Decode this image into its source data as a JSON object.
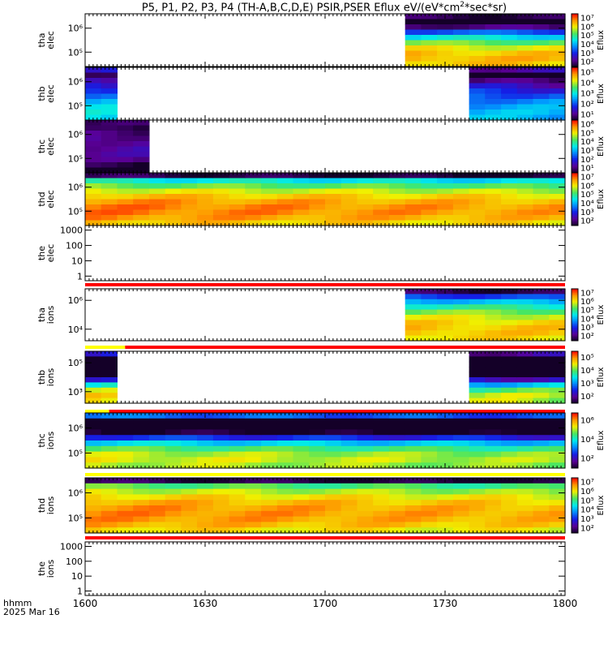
{
  "title": {
    "main": "P5, P1, P2, P3, P4 (TH-A,B,C,D,E) PSIR,PSER Eflux eV/(eV*cm",
    "sup": "2",
    "tail": "*sec*sr)"
  },
  "footer": {
    "line1": "hhmm",
    "line2": "2025 Mar 16"
  },
  "colors": {
    "frame": "#000000",
    "flag_red": "#ff0000",
    "flag_yellow": "#ffff00",
    "fill_black": "#000000"
  },
  "chart_data": {
    "type": "heatmap",
    "title": "P5, P1, P2, P3, P4 (TH-A,B,C,D,E) PSIR,PSER Eflux eV/(eV*cm2*sec*sr)",
    "xlabel": "",
    "x_ticks": [
      "1600",
      "1630",
      "1700",
      "1730",
      "1800"
    ],
    "x_tick_minutes": [
      0,
      30,
      60,
      90,
      120
    ],
    "xlim_minutes": [
      0,
      120
    ],
    "colorbar_title": "Eflux",
    "panels": [
      {
        "name": "tha-elec",
        "probe": "tha",
        "species": "elec",
        "label_lines": [
          "tha",
          "elec"
        ],
        "y_ticks": [
          "10⁵",
          "10⁶"
        ],
        "y_tick_exp": [
          5,
          6
        ],
        "ylim_exp": [
          4.4,
          6.6
        ],
        "cbar_ticks": [
          "10⁷",
          "10⁶",
          "10⁵",
          "10⁴",
          "10³",
          "10²"
        ],
        "cbar_tick_exp": [
          7,
          6,
          5,
          4,
          3,
          2
        ],
        "cbar_range_exp": [
          1.5,
          7.5
        ],
        "coverage_min": [
          [
            80,
            120
          ]
        ],
        "profile": {
          "peak_exp": 6.7,
          "peak_rows": 0.85,
          "width": 0.35,
          "top_exp": 2.0
        },
        "flag_bar": null
      },
      {
        "name": "thb-elec",
        "probe": "thb",
        "species": "elec",
        "label_lines": [
          "thb",
          "elec"
        ],
        "y_ticks": [
          "10⁵",
          "10⁶"
        ],
        "y_tick_exp": [
          5,
          6
        ],
        "ylim_exp": [
          4.4,
          6.6
        ],
        "cbar_ticks": [
          "10⁵",
          "10⁴",
          "10³",
          "10²",
          "10¹"
        ],
        "cbar_tick_exp": [
          5,
          4,
          3,
          2,
          1
        ],
        "cbar_range_exp": [
          0.5,
          5.5
        ],
        "coverage_min": [
          [
            0,
            6
          ],
          [
            98,
            120
          ]
        ],
        "profile": {
          "peak_exp": 2.9,
          "peak_rows": 0.9,
          "width": 0.6,
          "top_exp": 1.5
        },
        "flag_bar": null
      },
      {
        "name": "thc-elec",
        "probe": "thc",
        "species": "elec",
        "label_lines": [
          "thc",
          "elec"
        ],
        "y_ticks": [
          "10⁵",
          "10⁶"
        ],
        "y_tick_exp": [
          5,
          6
        ],
        "ylim_exp": [
          4.4,
          6.6
        ],
        "cbar_ticks": [
          "10⁶",
          "10⁵",
          "10⁴",
          "10³",
          "10²",
          "10¹"
        ],
        "cbar_tick_exp": [
          6,
          5,
          4,
          3,
          2,
          1
        ],
        "cbar_range_exp": [
          0.5,
          6.5
        ],
        "coverage_min": [
          [
            0,
            14
          ]
        ],
        "profile": {
          "peak_exp": 1.4,
          "peak_rows": 0.5,
          "width": 0.5,
          "top_exp": 0.8
        },
        "flag_bar": null
      },
      {
        "name": "thd-elec",
        "probe": "thd",
        "species": "elec",
        "label_lines": [
          "thd",
          "elec"
        ],
        "y_ticks": [
          "10⁵",
          "10⁶"
        ],
        "y_tick_exp": [
          5,
          6
        ],
        "ylim_exp": [
          4.4,
          6.6
        ],
        "cbar_ticks": [
          "10⁷",
          "10⁶",
          "10⁵",
          "10⁴",
          "10³",
          "10²"
        ],
        "cbar_tick_exp": [
          7,
          6,
          5,
          4,
          3,
          2
        ],
        "cbar_range_exp": [
          1.5,
          7.5
        ],
        "coverage_min": [
          [
            0,
            120
          ]
        ],
        "profile": {
          "peak_exp": 6.9,
          "peak_rows": 0.7,
          "width": 0.45,
          "top_exp": 1.8
        },
        "flag_bar": {
          "segments": [
            {
              "from": 0,
              "to": 120,
              "color": "red"
            }
          ]
        }
      },
      {
        "name": "the-elec",
        "probe": "the",
        "species": "elec",
        "label_lines": [
          "the",
          "elec"
        ],
        "y_ticks": [
          "1",
          "10",
          "100",
          "1000"
        ],
        "y_tick_exp": [
          0,
          1,
          2,
          3
        ],
        "ylim_exp": [
          -0.3,
          3.3
        ],
        "cbar_ticks": [],
        "cbar_tick_exp": [],
        "cbar_range_exp": null,
        "coverage_min": [],
        "profile": null,
        "flag_bar": null
      },
      {
        "name": "tha-ions",
        "probe": "tha",
        "species": "ions",
        "label_lines": [
          "tha",
          "ions"
        ],
        "y_ticks": [
          "10⁴",
          "10⁶"
        ],
        "y_tick_exp": [
          4,
          6
        ],
        "ylim_exp": [
          3.2,
          6.8
        ],
        "cbar_ticks": [
          "10⁷",
          "10⁶",
          "10⁵",
          "10⁴",
          "10³",
          "10²"
        ],
        "cbar_tick_exp": [
          7,
          6,
          5,
          4,
          3,
          2
        ],
        "cbar_range_exp": [
          1.5,
          7.5
        ],
        "coverage_min": [
          [
            80,
            120
          ]
        ],
        "profile": {
          "peak_exp": 6.6,
          "peak_rows": 0.8,
          "width": 0.45,
          "top_exp": 2.0
        },
        "flag_bar": {
          "segments": [
            {
              "from": 0,
              "to": 10,
              "color": "yellow"
            },
            {
              "from": 10,
              "to": 120,
              "color": "red"
            }
          ]
        }
      },
      {
        "name": "thb-ions",
        "probe": "thb",
        "species": "ions",
        "label_lines": [
          "thb",
          "ions"
        ],
        "y_ticks": [
          "10³",
          "10⁵"
        ],
        "y_tick_exp": [
          3,
          5
        ],
        "ylim_exp": [
          2.2,
          5.8
        ],
        "cbar_ticks": [
          "10⁵",
          "10⁴",
          "10³",
          "10²"
        ],
        "cbar_tick_exp": [
          5,
          4,
          3,
          2
        ],
        "cbar_range_exp": [
          1.5,
          5.5
        ],
        "coverage_min": [
          [
            0,
            6
          ],
          [
            98,
            120
          ]
        ],
        "profile": {
          "peak_exp": 4.6,
          "peak_rows": 0.9,
          "width": 0.3,
          "top_exp": 2.3
        },
        "flag_bar": {
          "segments": [
            {
              "from": 0,
              "to": 6,
              "color": "yellow"
            },
            {
              "from": 6,
              "to": 120,
              "color": "red"
            }
          ]
        }
      },
      {
        "name": "thc-ions",
        "probe": "thc",
        "species": "ions",
        "label_lines": [
          "thc",
          "ions"
        ],
        "y_ticks": [
          "10⁵",
          "10⁶"
        ],
        "y_tick_exp": [
          5,
          6
        ],
        "ylim_exp": [
          4.4,
          6.6
        ],
        "cbar_ticks": [
          "10⁶",
          "10⁴",
          "10²"
        ],
        "cbar_tick_exp": [
          6,
          4,
          2
        ],
        "cbar_range_exp": [
          1.0,
          6.8
        ],
        "coverage_min": [
          [
            0,
            120
          ]
        ],
        "profile": {
          "peak_exp": 5.3,
          "peak_rows": 0.85,
          "width": 0.3,
          "top_exp": 3.0
        },
        "flag_bar": {
          "segments": [
            {
              "from": 0,
              "to": 120,
              "color": "yellow"
            }
          ]
        }
      },
      {
        "name": "thd-ions",
        "probe": "thd",
        "species": "ions",
        "label_lines": [
          "thd",
          "ions"
        ],
        "y_ticks": [
          "10⁵",
          "10⁶"
        ],
        "y_tick_exp": [
          5,
          6
        ],
        "ylim_exp": [
          4.4,
          6.6
        ],
        "cbar_ticks": [
          "10⁷",
          "10⁶",
          "10⁵",
          "10⁴",
          "10³",
          "10²"
        ],
        "cbar_tick_exp": [
          7,
          6,
          5,
          4,
          3,
          2
        ],
        "cbar_range_exp": [
          1.5,
          7.5
        ],
        "coverage_min": [
          [
            0,
            120
          ]
        ],
        "profile": {
          "peak_exp": 6.8,
          "peak_rows": 0.65,
          "width": 0.5,
          "top_exp": 1.8
        },
        "flag_bar": {
          "segments": [
            {
              "from": 0,
              "to": 120,
              "color": "red"
            }
          ]
        }
      },
      {
        "name": "the-ions",
        "probe": "the",
        "species": "ions",
        "label_lines": [
          "the",
          "ions"
        ],
        "y_ticks": [
          "1",
          "10",
          "100",
          "1000"
        ],
        "y_tick_exp": [
          0,
          1,
          2,
          3
        ],
        "ylim_exp": [
          -0.3,
          3.3
        ],
        "cbar_ticks": [],
        "cbar_tick_exp": [],
        "cbar_range_exp": null,
        "coverage_min": [],
        "profile": null,
        "flag_bar": null
      }
    ]
  }
}
